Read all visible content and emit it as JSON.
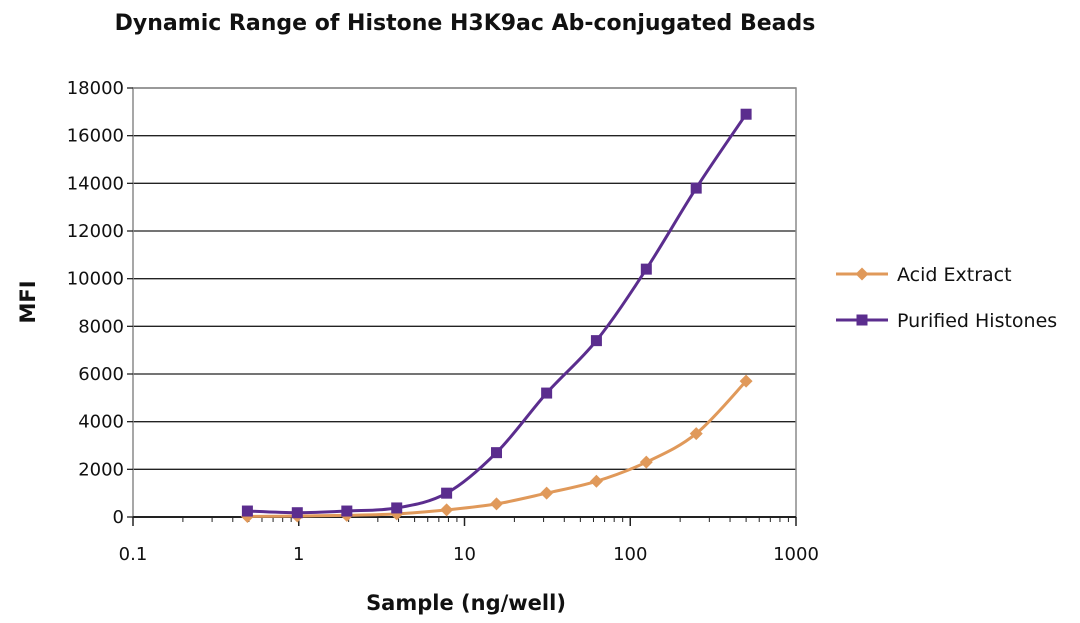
{
  "chart_data": {
    "type": "line",
    "title": "Dynamic Range of Histone H3K9ac Ab-conjugated Beads",
    "xlabel": "Sample (ng/well)",
    "ylabel": "MFI",
    "x_scale": "log",
    "xlim": [
      0.1,
      1000
    ],
    "ylim": [
      0,
      18000
    ],
    "x_ticks": [
      0.1,
      1,
      10,
      100,
      1000
    ],
    "x_tick_labels": [
      "0.1",
      "1",
      "10",
      "100",
      "1000"
    ],
    "y_ticks": [
      0,
      2000,
      4000,
      6000,
      8000,
      10000,
      12000,
      14000,
      16000,
      18000
    ],
    "y_tick_labels": [
      "0",
      "2000",
      "4000",
      "6000",
      "8000",
      "10000",
      "12000",
      "14000",
      "16000",
      "18000"
    ],
    "grid": "horizontal",
    "legend_position": "right",
    "series": [
      {
        "name": "Acid Extract",
        "color": "#e0995a",
        "marker": "diamond",
        "x": [
          0.49,
          0.98,
          1.95,
          3.9,
          7.8,
          15.6,
          31.3,
          62.5,
          125,
          250,
          500
        ],
        "y": [
          20,
          40,
          70,
          130,
          300,
          550,
          1000,
          1500,
          2300,
          3500,
          5700
        ]
      },
      {
        "name": "Purified Histones",
        "color": "#5b2d8e",
        "marker": "square",
        "x": [
          0.49,
          0.98,
          1.95,
          3.9,
          7.8,
          15.6,
          31.3,
          62.5,
          125,
          250,
          500
        ],
        "y": [
          250,
          180,
          250,
          380,
          1000,
          2700,
          5200,
          7400,
          10400,
          13800,
          16900
        ]
      }
    ]
  }
}
